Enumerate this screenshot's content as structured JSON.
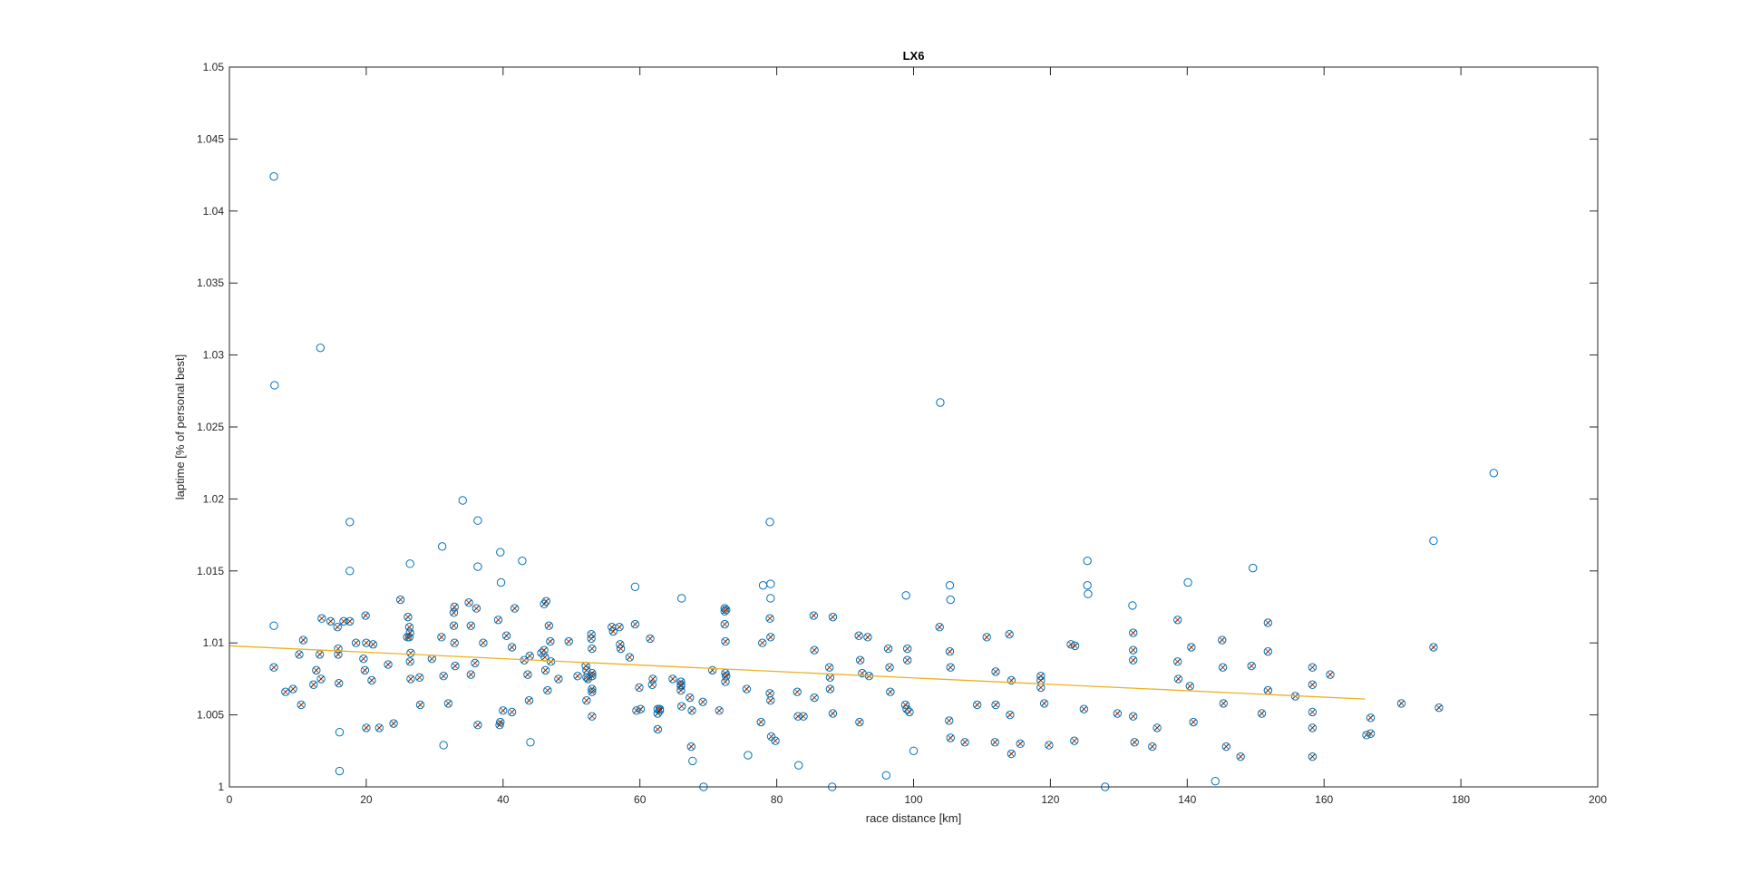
{
  "chart_data": {
    "type": "scatter",
    "title": "LX6",
    "xlabel": "race distance [km]",
    "ylabel": "laptime [% of personal best]",
    "xlim": [
      0,
      200
    ],
    "ylim": [
      1,
      1.05
    ],
    "xticks": [
      "0",
      "20",
      "40",
      "60",
      "80",
      "100",
      "120",
      "140",
      "160",
      "180",
      "200"
    ],
    "yticks": [
      "1",
      "1.005",
      "1.01",
      "1.015",
      "1.02",
      "1.025",
      "1.03",
      "1.035",
      "1.04",
      "1.045",
      "1.05"
    ],
    "grid": false,
    "legend": "none",
    "colors": {
      "marker": "#0072BD",
      "cross": "#D95319",
      "cross_overlay": "#333333",
      "trend": "#EDB120"
    },
    "series": [
      {
        "marker": "circle-x",
        "points": [
          [
            6.5,
            1.0083
          ],
          [
            8.2,
            1.0066
          ],
          [
            9.3,
            1.0068
          ],
          [
            10.2,
            1.0092
          ],
          [
            10.5,
            1.0057
          ],
          [
            10.8,
            1.0102
          ],
          [
            12.3,
            1.0071
          ],
          [
            12.7,
            1.0081
          ],
          [
            13.2,
            1.0092
          ],
          [
            13.4,
            1.0075
          ],
          [
            13.5,
            1.0117
          ],
          [
            14.8,
            1.0115
          ],
          [
            15.8,
            1.0111
          ],
          [
            15.9,
            1.0096
          ],
          [
            15.9,
            1.0092
          ],
          [
            16.0,
            1.0072
          ],
          [
            16.7,
            1.0115
          ],
          [
            17.6,
            1.0115
          ],
          [
            18.5,
            1.01
          ],
          [
            19.6,
            1.0089
          ],
          [
            19.8,
            1.0081
          ],
          [
            19.9,
            1.0119
          ],
          [
            20.0,
            1.0041
          ],
          [
            20.0,
            1.01
          ],
          [
            20.8,
            1.0074
          ],
          [
            21.0,
            1.0099
          ],
          [
            21.9,
            1.0041
          ],
          [
            23.2,
            1.0085
          ],
          [
            24.0,
            1.0044
          ],
          [
            25.0,
            1.013
          ],
          [
            26.0,
            1.0104
          ],
          [
            26.1,
            1.0118
          ],
          [
            26.3,
            1.0111
          ],
          [
            26.3,
            1.0104
          ],
          [
            26.4,
            1.0107
          ],
          [
            26.4,
            1.0087
          ],
          [
            26.5,
            1.0075
          ],
          [
            26.5,
            1.0093
          ],
          [
            27.8,
            1.0076
          ],
          [
            27.9,
            1.0057
          ],
          [
            29.6,
            1.0089
          ],
          [
            31.0,
            1.0104
          ],
          [
            31.3,
            1.0077
          ],
          [
            32.0,
            1.0058
          ],
          [
            32.8,
            1.0121
          ],
          [
            32.8,
            1.0112
          ],
          [
            32.9,
            1.0125
          ],
          [
            32.9,
            1.01
          ],
          [
            33.0,
            1.0084
          ],
          [
            35.0,
            1.0128
          ],
          [
            35.3,
            1.0078
          ],
          [
            35.3,
            1.0112
          ],
          [
            35.9,
            1.0086
          ],
          [
            36.1,
            1.0124
          ],
          [
            36.3,
            1.0043
          ],
          [
            37.1,
            1.01
          ],
          [
            39.3,
            1.0116
          ],
          [
            39.5,
            1.0043
          ],
          [
            39.6,
            1.0045
          ],
          [
            40.0,
            1.0053
          ],
          [
            40.5,
            1.0105
          ],
          [
            41.3,
            1.0097
          ],
          [
            41.3,
            1.0052
          ],
          [
            41.7,
            1.0124
          ],
          [
            43.1,
            1.0088
          ],
          [
            43.6,
            1.0078
          ],
          [
            43.8,
            1.006
          ],
          [
            43.9,
            1.0091
          ],
          [
            45.6,
            1.0093
          ],
          [
            46.0,
            1.0095
          ],
          [
            46.0,
            1.0127
          ],
          [
            46.1,
            1.009
          ],
          [
            46.2,
            1.0081
          ],
          [
            46.3,
            1.0129
          ],
          [
            46.5,
            1.0067
          ],
          [
            46.7,
            1.0112
          ],
          [
            46.9,
            1.0101
          ],
          [
            47.0,
            1.0087
          ],
          [
            48.1,
            1.0075
          ],
          [
            49.6,
            1.0101
          ],
          [
            50.9,
            1.0077
          ],
          [
            52.1,
            1.0084
          ],
          [
            52.2,
            1.006
          ],
          [
            52.2,
            1.0081
          ],
          [
            52.2,
            1.0076
          ],
          [
            52.4,
            1.0075
          ],
          [
            52.9,
            1.0106
          ],
          [
            52.9,
            1.0103
          ],
          [
            53.0,
            1.0077
          ],
          [
            53.0,
            1.0068
          ],
          [
            53.0,
            1.0077
          ],
          [
            53.0,
            1.0066
          ],
          [
            53.0,
            1.0096
          ],
          [
            53.0,
            1.0049
          ],
          [
            53.0,
            1.0079
          ],
          [
            55.9,
            1.0111
          ],
          [
            56.1,
            1.0108
          ],
          [
            57.0,
            1.0111
          ],
          [
            57.1,
            1.0099
          ],
          [
            57.2,
            1.0096
          ],
          [
            58.5,
            1.009
          ],
          [
            59.3,
            1.0113
          ],
          [
            59.5,
            1.0053
          ],
          [
            59.9,
            1.0069
          ],
          [
            60.1,
            1.0054
          ],
          [
            61.5,
            1.0103
          ],
          [
            61.8,
            1.0071
          ],
          [
            61.9,
            1.0075
          ],
          [
            62.6,
            1.0054
          ],
          [
            62.6,
            1.0051
          ],
          [
            62.6,
            1.004
          ],
          [
            62.9,
            1.0054
          ],
          [
            62.9,
            1.0053
          ],
          [
            64.8,
            1.0075
          ],
          [
            66.0,
            1.007
          ],
          [
            66.0,
            1.0073
          ],
          [
            66.0,
            1.0071
          ],
          [
            66.0,
            1.0067
          ],
          [
            66.1,
            1.0056
          ],
          [
            67.3,
            1.0062
          ],
          [
            67.5,
            1.0028
          ],
          [
            67.6,
            1.0053
          ],
          [
            69.2,
            1.0059
          ],
          [
            70.6,
            1.0081
          ],
          [
            71.6,
            1.0053
          ],
          [
            72.4,
            1.0124
          ],
          [
            72.4,
            1.0122
          ],
          [
            72.4,
            1.0113
          ],
          [
            72.5,
            1.0101
          ],
          [
            72.5,
            1.0079
          ],
          [
            72.5,
            1.0073
          ],
          [
            72.6,
            1.0077
          ],
          [
            72.6,
            1.0123
          ],
          [
            75.6,
            1.0068
          ],
          [
            77.7,
            1.0045
          ],
          [
            77.9,
            1.01
          ],
          [
            79.0,
            1.0117
          ],
          [
            79.0,
            1.0065
          ],
          [
            79.1,
            1.0104
          ],
          [
            79.1,
            1.006
          ],
          [
            79.2,
            1.0035
          ],
          [
            79.8,
            1.0032
          ],
          [
            83.0,
            1.0066
          ],
          [
            83.1,
            1.0049
          ],
          [
            83.9,
            1.0049
          ],
          [
            85.4,
            1.0119
          ],
          [
            85.5,
            1.0095
          ],
          [
            85.5,
            1.0062
          ],
          [
            87.7,
            1.0083
          ],
          [
            87.8,
            1.0076
          ],
          [
            87.8,
            1.0068
          ],
          [
            88.2,
            1.0051
          ],
          [
            88.2,
            1.0118
          ],
          [
            92.0,
            1.0105
          ],
          [
            92.1,
            1.0045
          ],
          [
            92.2,
            1.0088
          ],
          [
            92.5,
            1.0079
          ],
          [
            93.3,
            1.0104
          ],
          [
            93.5,
            1.0077
          ],
          [
            96.3,
            1.0096
          ],
          [
            96.5,
            1.0083
          ],
          [
            96.6,
            1.0066
          ],
          [
            98.8,
            1.0057
          ],
          [
            99.0,
            1.0054
          ],
          [
            99.1,
            1.0096
          ],
          [
            99.1,
            1.0088
          ],
          [
            99.4,
            1.0052
          ],
          [
            103.8,
            1.0111
          ],
          [
            105.2,
            1.0046
          ],
          [
            105.3,
            1.0094
          ],
          [
            105.4,
            1.0083
          ],
          [
            105.4,
            1.0034
          ],
          [
            107.5,
            1.0031
          ],
          [
            109.3,
            1.0057
          ],
          [
            110.7,
            1.0104
          ],
          [
            111.9,
            1.0031
          ],
          [
            112.0,
            1.008
          ],
          [
            112.0,
            1.0057
          ],
          [
            114.0,
            1.0106
          ],
          [
            114.1,
            1.005
          ],
          [
            114.3,
            1.0074
          ],
          [
            114.3,
            1.0023
          ],
          [
            115.6,
            1.003
          ],
          [
            118.6,
            1.0077
          ],
          [
            118.6,
            1.0074
          ],
          [
            118.6,
            1.0069
          ],
          [
            119.1,
            1.0058
          ],
          [
            119.8,
            1.0029
          ],
          [
            123.0,
            1.0099
          ],
          [
            123.5,
            1.0032
          ],
          [
            123.6,
            1.0098
          ],
          [
            124.9,
            1.0054
          ],
          [
            129.8,
            1.0051
          ],
          [
            132.1,
            1.0107
          ],
          [
            132.1,
            1.0095
          ],
          [
            132.1,
            1.0088
          ],
          [
            132.1,
            1.0049
          ],
          [
            132.3,
            1.0031
          ],
          [
            134.9,
            1.0028
          ],
          [
            135.6,
            1.0041
          ],
          [
            138.6,
            1.0116
          ],
          [
            138.6,
            1.0087
          ],
          [
            138.7,
            1.0075
          ],
          [
            140.4,
            1.007
          ],
          [
            140.6,
            1.0097
          ],
          [
            140.9,
            1.0045
          ],
          [
            145.1,
            1.0102
          ],
          [
            145.2,
            1.0083
          ],
          [
            145.3,
            1.0058
          ],
          [
            145.7,
            1.0028
          ],
          [
            147.8,
            1.0021
          ],
          [
            149.4,
            1.0084
          ],
          [
            150.9,
            1.0051
          ],
          [
            151.8,
            1.0114
          ],
          [
            151.8,
            1.0094
          ],
          [
            151.8,
            1.0067
          ],
          [
            155.8,
            1.0063
          ],
          [
            158.3,
            1.0083
          ],
          [
            158.3,
            1.0071
          ],
          [
            158.3,
            1.0052
          ],
          [
            158.3,
            1.0041
          ],
          [
            158.3,
            1.0021
          ],
          [
            160.9,
            1.0078
          ],
          [
            166.2,
            1.0036
          ],
          [
            166.8,
            1.0048
          ],
          [
            166.8,
            1.0037
          ],
          [
            171.3,
            1.0058
          ],
          [
            176.0,
            1.0097
          ],
          [
            176.8,
            1.0055
          ]
        ]
      },
      {
        "marker": "circle",
        "points": [
          [
            6.5,
            1.0112
          ],
          [
            6.5,
            1.0424
          ],
          [
            6.6,
            1.0279
          ],
          [
            13.3,
            1.0305
          ],
          [
            16.1,
            1.0038
          ],
          [
            16.1,
            1.0011
          ],
          [
            17.6,
            1.0184
          ],
          [
            17.6,
            1.015
          ],
          [
            26.4,
            1.0155
          ],
          [
            31.1,
            1.0167
          ],
          [
            31.3,
            1.0029
          ],
          [
            34.1,
            1.0199
          ],
          [
            36.3,
            1.0185
          ],
          [
            36.3,
            1.0153
          ],
          [
            39.6,
            1.0163
          ],
          [
            39.7,
            1.0142
          ],
          [
            42.8,
            1.0157
          ],
          [
            44.0,
            1.0031
          ],
          [
            59.3,
            1.0139
          ],
          [
            66.1,
            1.0131
          ],
          [
            67.7,
            1.0018
          ],
          [
            69.3,
            1.0
          ],
          [
            75.8,
            1.0022
          ],
          [
            78.0,
            1.014
          ],
          [
            79.0,
            1.0184
          ],
          [
            79.1,
            1.0141
          ],
          [
            79.1,
            1.0131
          ],
          [
            83.2,
            1.0015
          ],
          [
            88.1,
            1.0
          ],
          [
            96.0,
            1.0008
          ],
          [
            98.9,
            1.0133
          ],
          [
            100.0,
            1.0025
          ],
          [
            103.9,
            1.0267
          ],
          [
            105.3,
            1.014
          ],
          [
            105.4,
            1.013
          ],
          [
            125.4,
            1.0157
          ],
          [
            125.4,
            1.014
          ],
          [
            125.5,
            1.0134
          ],
          [
            128.0,
            1.0
          ],
          [
            132.0,
            1.0126
          ],
          [
            140.1,
            1.0142
          ],
          [
            144.1,
            1.0004
          ],
          [
            149.6,
            1.0152
          ],
          [
            176.0,
            1.0171
          ],
          [
            184.8,
            1.0218
          ]
        ]
      }
    ],
    "trend_line": {
      "x": [
        0,
        166
      ],
      "y": [
        1.0098,
        1.0061
      ]
    }
  }
}
